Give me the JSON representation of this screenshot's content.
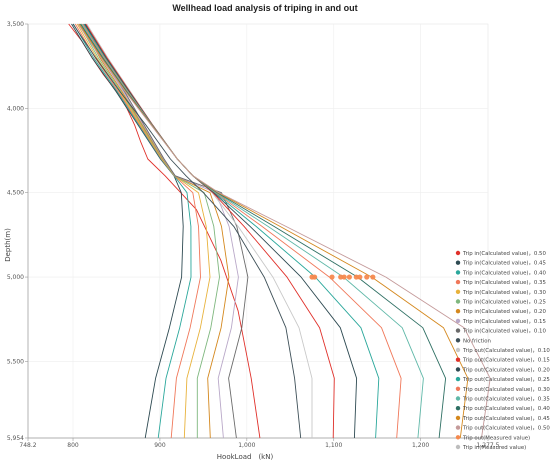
{
  "chart_data": {
    "type": "line",
    "title": "Wellhead load analysis of triping in and out",
    "xlabel": "HookLoad　(kN)",
    "ylabel": "Depth(m)",
    "xlim": [
      748.2,
      1277.5
    ],
    "ylim": [
      3500,
      5954
    ],
    "y_inverted": true,
    "x_ticks": [
      "748.2",
      "800",
      "900",
      "1,000",
      "1,100",
      "1,200",
      "1,277.5"
    ],
    "x_tick_values": [
      748.2,
      800,
      900,
      1000,
      1100,
      1200,
      1277.5
    ],
    "y_ticks": [
      "3,500",
      "4,000",
      "4,500",
      "5,000",
      "5,500",
      "5,954"
    ],
    "y_tick_values": [
      3500,
      4000,
      4500,
      5000,
      5500,
      5954
    ],
    "grid": true,
    "legend_position": "right",
    "series": [
      {
        "name": "Trip in(Calculated value)，0.50",
        "color": "#e0302a",
        "type": "trip_in",
        "f": 0.5,
        "x": [
          795,
          810,
          822,
          835,
          850,
          862,
          871,
          878,
          886,
          906,
          942,
          970,
          990,
          1005,
          1015
        ],
        "y": [
          3500,
          3600,
          3700,
          3800,
          3900,
          4000,
          4100,
          4200,
          4300,
          4400,
          4600,
          4900,
          5200,
          5600,
          5954
        ]
      },
      {
        "name": "Trip in(Calculated value)，0.45",
        "color": "#2e4a52",
        "type": "trip_in",
        "f": 0.45
      },
      {
        "name": "Trip in(Calculated value)，0.40",
        "color": "#2aa79b",
        "type": "trip_in",
        "f": 0.4
      },
      {
        "name": "Trip in(Calculated value)，0.35",
        "color": "#f0785a",
        "type": "trip_in",
        "f": 0.35
      },
      {
        "name": "Trip in(Calculated value)，0.30",
        "color": "#e8b23c",
        "type": "trip_in",
        "f": 0.3
      },
      {
        "name": "Trip in(Calculated value)，0.25",
        "color": "#7fb77e",
        "type": "trip_in",
        "f": 0.25
      },
      {
        "name": "Trip in(Calculated value)，0.20",
        "color": "#d4881e",
        "type": "trip_in",
        "f": 0.2
      },
      {
        "name": "Trip in(Calculated value)，0.15",
        "color": "#b9a8c8",
        "type": "trip_in",
        "f": 0.15
      },
      {
        "name": "Trip in(Calculated value)，0.10",
        "color": "#6b6b6b",
        "type": "trip_in",
        "f": 0.1
      },
      {
        "name": "No friction",
        "color": "#3d4f57",
        "type": "none",
        "f": 0.0
      },
      {
        "name": "Trip out(Calculated value)，0.10",
        "color": "#c8c8c8",
        "type": "trip_out",
        "f": 0.1
      },
      {
        "name": "Trip out(Calculated value)，0.15",
        "color": "#e0302a",
        "type": "trip_out",
        "f": 0.15
      },
      {
        "name": "Trip out(Calculated value)，0.20",
        "color": "#2e4a52",
        "type": "trip_out",
        "f": 0.2
      },
      {
        "name": "Trip out(Calculated value)，0.25",
        "color": "#2aa79b",
        "type": "trip_out",
        "f": 0.25
      },
      {
        "name": "Trip out(Calculated value)，0.30",
        "color": "#f0785a",
        "type": "trip_out",
        "f": 0.3
      },
      {
        "name": "Trip out(Calculated value)，0.35",
        "color": "#5fb8a8",
        "type": "trip_out",
        "f": 0.35
      },
      {
        "name": "Trip out(Calculated value)，0.40",
        "color": "#2e6f63",
        "type": "trip_out",
        "f": 0.4
      },
      {
        "name": "Trip out(Calculated value)，0.45",
        "color": "#d4881e",
        "type": "trip_out",
        "f": 0.45
      },
      {
        "name": "Trip out(Calculated value)，0.50",
        "color": "#c49a9a",
        "type": "trip_out",
        "f": 0.5
      },
      {
        "name": "Trip out(Measured value)",
        "color": "#f5894e",
        "type": "measured",
        "x": [
          1075,
          1078,
          1098,
          1108,
          1112,
          1118,
          1126,
          1130,
          1138,
          1145
        ],
        "y": [
          5000,
          5000,
          5000,
          5000,
          5000,
          5000,
          5000,
          5000,
          5000,
          5000
        ]
      },
      {
        "name": "Trip in(Measured value)",
        "color": "#bdbdbd",
        "type": "measured",
        "x": [],
        "y": []
      }
    ]
  }
}
